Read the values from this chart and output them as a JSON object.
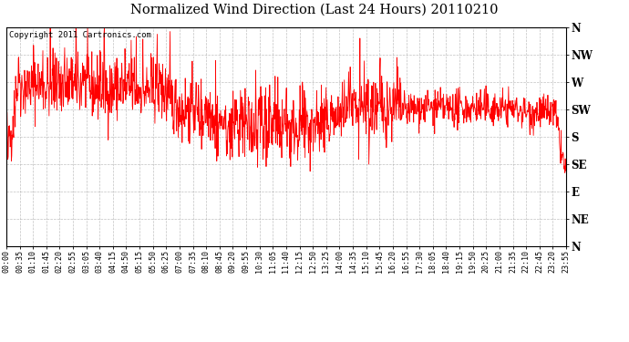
{
  "title": "Normalized Wind Direction (Last 24 Hours) 20110210",
  "copyright_text": "Copyright 2011 Cartronics.com",
  "line_color": "#ff0000",
  "background_color": "#ffffff",
  "plot_bg_color": "#ffffff",
  "grid_color": "#999999",
  "ytick_labels": [
    "N",
    "NW",
    "W",
    "SW",
    "S",
    "SE",
    "E",
    "NE",
    "N"
  ],
  "ytick_values": [
    1.0,
    0.875,
    0.75,
    0.625,
    0.5,
    0.375,
    0.25,
    0.125,
    0.0
  ],
  "ylim": [
    0.0,
    1.0
  ],
  "xtick_labels": [
    "00:00",
    "00:35",
    "01:10",
    "01:45",
    "02:20",
    "02:55",
    "03:05",
    "03:40",
    "04:15",
    "04:50",
    "05:15",
    "05:50",
    "06:25",
    "07:00",
    "07:35",
    "08:10",
    "08:45",
    "09:20",
    "09:55",
    "10:30",
    "11:05",
    "11:40",
    "12:15",
    "12:50",
    "13:25",
    "14:00",
    "14:35",
    "15:10",
    "15:45",
    "16:20",
    "16:55",
    "17:30",
    "18:05",
    "18:40",
    "19:15",
    "19:50",
    "20:25",
    "21:00",
    "21:35",
    "22:10",
    "22:45",
    "23:20",
    "23:55"
  ],
  "seed": 42,
  "n_points": 1440
}
